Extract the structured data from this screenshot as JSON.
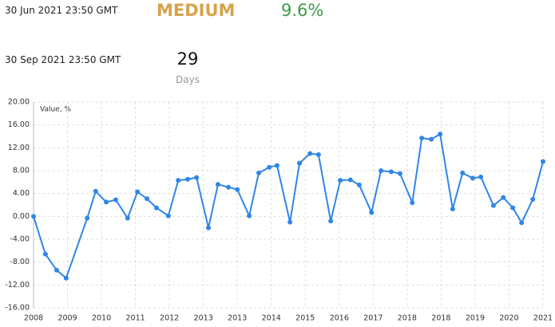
{
  "header": {
    "date_start": "30 Jun 2021 23:50 GMT",
    "status": "MEDIUM",
    "change": "9.6%",
    "date_end": "30 Sep 2021 23:50 GMT",
    "days": "29",
    "days_label": "Days"
  },
  "chart_data": {
    "type": "line",
    "y_label": "Value, %",
    "x": [
      0,
      0.35,
      0.68,
      0.96,
      1.58,
      1.83,
      2.14,
      2.42,
      2.77,
      3.06,
      3.34,
      3.62,
      3.97,
      4.26,
      4.54,
      4.8,
      5.15,
      5.43,
      5.74,
      6.0,
      6.35,
      6.63,
      6.94,
      7.17,
      7.55,
      7.83,
      8.14,
      8.39,
      8.75,
      9.03,
      9.33,
      9.59,
      9.95,
      10.23,
      10.53,
      10.79,
      11.15,
      11.43,
      11.71,
      11.97,
      12.34,
      12.63,
      12.93,
      13.17,
      13.54,
      13.83,
      14.11,
      14.37,
      14.7,
      15.0
    ],
    "series": [
      {
        "name": "Value",
        "color": "#2f86e8",
        "values": [
          0,
          -6.6,
          -9.4,
          -10.8,
          -0.3,
          4.4,
          2.5,
          2.9,
          -0.3,
          4.3,
          3.1,
          1.5,
          0.1,
          6.3,
          6.5,
          6.8,
          -2.0,
          5.6,
          5.1,
          4.7,
          0.1,
          7.6,
          8.6,
          8.9,
          -1.0,
          9.3,
          11.0,
          10.8,
          -0.8,
          6.3,
          6.4,
          5.5,
          0.7,
          8.0,
          7.8,
          7.5,
          2.4,
          13.7,
          13.5,
          14.4,
          1.3,
          7.6,
          6.7,
          6.9,
          1.9,
          3.3,
          1.5,
          -1.1,
          3.0,
          9.6
        ]
      }
    ],
    "xlim": [
      0,
      15
    ],
    "xticks": [
      {
        "value": 0,
        "label": "2008"
      },
      {
        "value": 1,
        "label": "2009"
      },
      {
        "value": 2,
        "label": "2010"
      },
      {
        "value": 3,
        "label": "2011"
      },
      {
        "value": 4,
        "label": "2012"
      },
      {
        "value": 5,
        "label": "2013"
      },
      {
        "value": 6,
        "label": "2013"
      },
      {
        "value": 7,
        "label": "2014"
      },
      {
        "value": 8,
        "label": "2015"
      },
      {
        "value": 9,
        "label": "2016"
      },
      {
        "value": 10,
        "label": "2017"
      },
      {
        "value": 11,
        "label": "2018"
      },
      {
        "value": 12,
        "label": "2018"
      },
      {
        "value": 13,
        "label": "2019"
      },
      {
        "value": 14,
        "label": "2020"
      },
      {
        "value": 15,
        "label": "2021"
      }
    ],
    "ylim": [
      -16,
      20
    ],
    "yticks": [
      {
        "value": -16,
        "label": "-16.00"
      },
      {
        "value": -12,
        "label": "-12.00"
      },
      {
        "value": -8,
        "label": "-8.00"
      },
      {
        "value": -4,
        "label": "-4.00"
      },
      {
        "value": 0,
        "label": "0.00"
      },
      {
        "value": 4,
        "label": "4.00"
      },
      {
        "value": 8,
        "label": "8.00"
      },
      {
        "value": 12,
        "label": "12.00"
      },
      {
        "value": 16,
        "label": "16.00"
      },
      {
        "value": 20,
        "label": "20.00"
      }
    ],
    "grid": true
  }
}
